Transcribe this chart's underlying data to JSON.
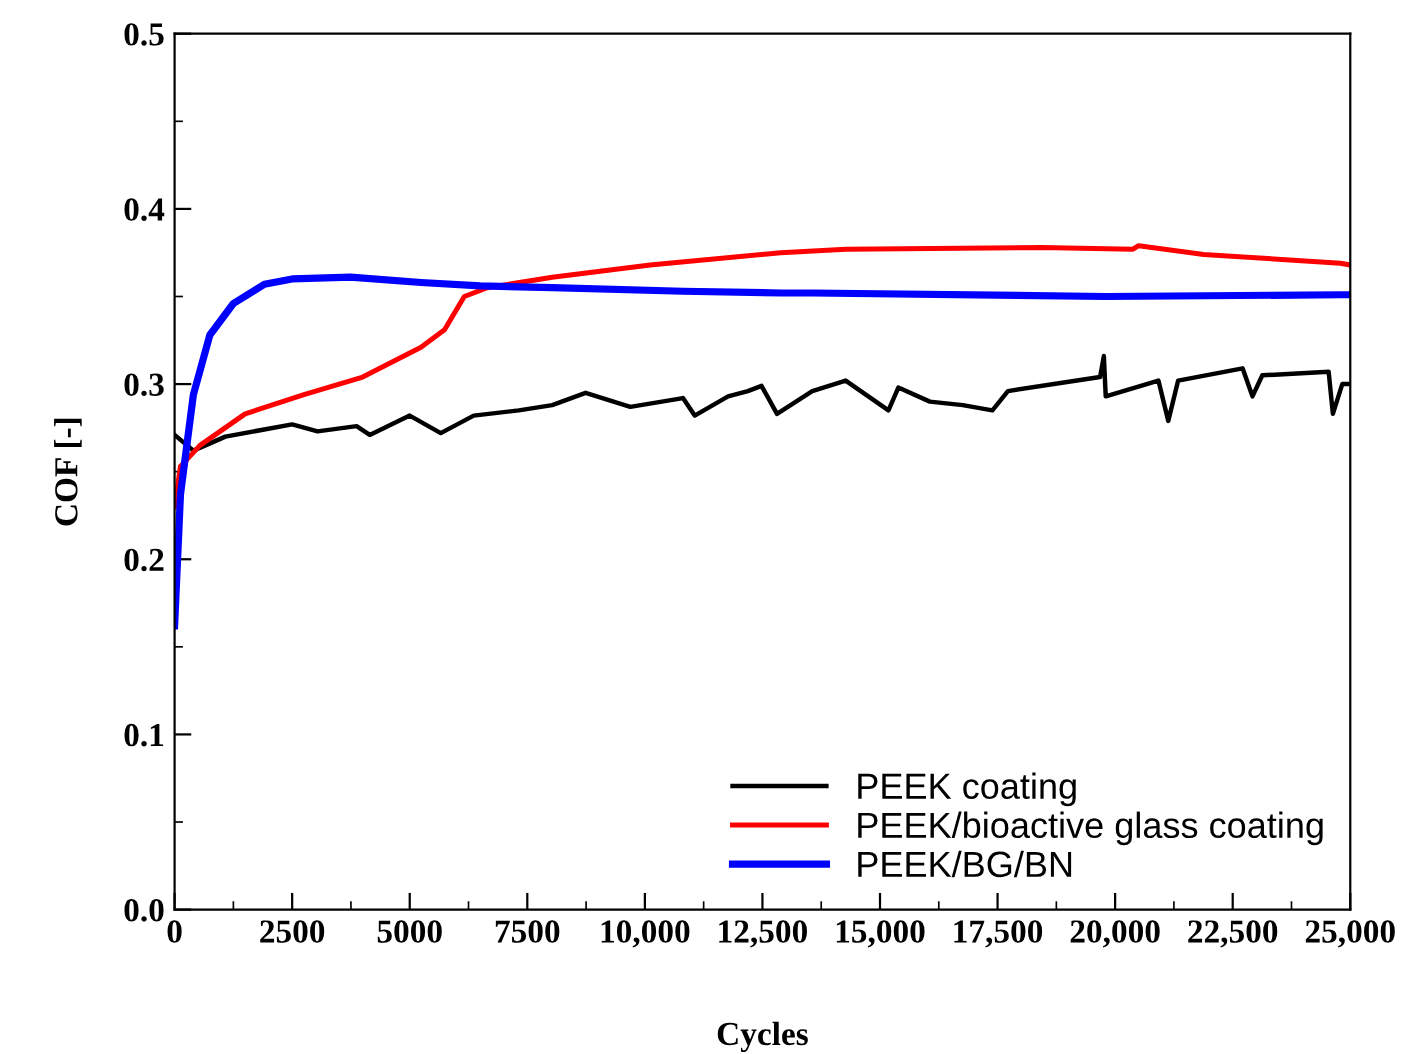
{
  "chart_data": {
    "type": "line",
    "xlabel": "Cycles",
    "ylabel": "COF [-]",
    "xlim": [
      0,
      25000
    ],
    "ylim": [
      0.0,
      0.5
    ],
    "xticks": [
      0,
      2500,
      5000,
      7500,
      {
        "value": 10000,
        "label": "10,000"
      },
      {
        "value": 12500,
        "label": "12,500"
      },
      {
        "value": 15000,
        "label": "15,000"
      },
      {
        "value": 17500,
        "label": "17,500"
      },
      {
        "value": 20000,
        "label": "20,000"
      },
      {
        "value": 22500,
        "label": "22,500"
      },
      {
        "value": 25000,
        "label": "25,000"
      }
    ],
    "yticks": [
      {
        "value": 0.0,
        "label": "0.0"
      },
      0.1,
      0.2,
      0.3,
      0.4,
      0.5
    ],
    "grid": false,
    "legend": "bottom right",
    "marker": "none",
    "line_style": "solid",
    "series": [
      {
        "name": "PEEK coating",
        "color": "#000000",
        "x": [
          0,
          400,
          1080,
          2500,
          3040,
          3870,
          4150,
          5000,
          5660,
          6360,
          7320,
          8030,
          8740,
          9690,
          10810,
          11060,
          11770,
          12190,
          12480,
          12810,
          13560,
          14270,
          15180,
          15390,
          16060,
          16760,
          17390,
          17720,
          19680,
          19760,
          19800,
          20920,
          21130,
          21340,
          22710,
          22920,
          23130,
          24540,
          24630,
          24830,
          25000
        ],
        "values": [
          0.271,
          0.262,
          0.27,
          0.277,
          0.273,
          0.276,
          0.271,
          0.282,
          0.272,
          0.282,
          0.285,
          0.288,
          0.295,
          0.287,
          0.292,
          0.282,
          0.293,
          0.296,
          0.299,
          0.283,
          0.296,
          0.302,
          0.285,
          0.298,
          0.29,
          0.288,
          0.285,
          0.296,
          0.304,
          0.316,
          0.293,
          0.302,
          0.279,
          0.302,
          0.309,
          0.293,
          0.305,
          0.307,
          0.283,
          0.3,
          0.3
        ]
      },
      {
        "name": "PEEK/bioactive glass coating",
        "color": "#ff0000",
        "x": [
          0,
          125,
          540,
          1500,
          2750,
          4000,
          5240,
          5740,
          6160,
          6650,
          8030,
          10110,
          12890,
          14270,
          18430,
          20380,
          20500,
          21880,
          24790,
          25000
        ],
        "values": [
          0.23,
          0.253,
          0.265,
          0.283,
          0.294,
          0.304,
          0.321,
          0.331,
          0.35,
          0.355,
          0.361,
          0.368,
          0.375,
          0.377,
          0.378,
          0.377,
          0.379,
          0.374,
          0.369,
          0.368
        ]
      },
      {
        "name": "PEEK/BG/BN",
        "color": "#0000ff",
        "x": [
          0,
          125,
          400,
          750,
          1250,
          1910,
          2500,
          3740,
          5240,
          6500,
          8030,
          10810,
          12890,
          13560,
          19800,
          24800,
          25000
        ],
        "values": [
          0.162,
          0.237,
          0.294,
          0.328,
          0.346,
          0.357,
          0.36,
          0.361,
          0.358,
          0.356,
          0.355,
          0.353,
          0.352,
          0.352,
          0.35,
          0.351,
          0.351
        ]
      }
    ]
  }
}
